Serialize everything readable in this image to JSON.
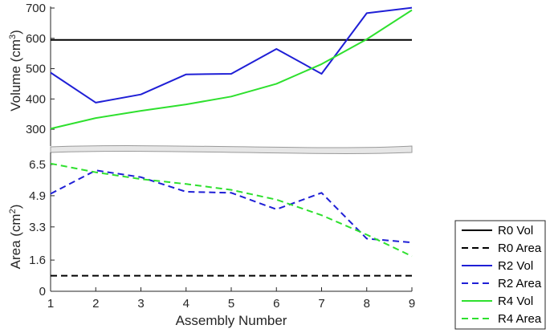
{
  "chart_data": {
    "type": "line",
    "x": [
      1,
      2,
      3,
      4,
      5,
      6,
      7,
      8,
      9
    ],
    "xlabel": "Assembly Number",
    "x_ticks": [
      "1",
      "2",
      "3",
      "4",
      "5",
      "6",
      "7",
      "8",
      "9"
    ],
    "xlim": [
      1,
      9
    ],
    "top_panel": {
      "ylabel": "Volume (cm³)",
      "ylim": [
        250,
        700
      ],
      "y_ticks": [
        "300",
        "400",
        "500",
        "600",
        "700"
      ],
      "series": [
        {
          "name": "R0 Vol",
          "color": "#000000",
          "style": "solid",
          "values": [
            595,
            595,
            595,
            595,
            595,
            595,
            595,
            595,
            595
          ]
        },
        {
          "name": "R2 Vol",
          "color": "#1f1fd6",
          "style": "solid",
          "values": [
            487,
            388,
            415,
            481,
            483,
            565,
            483,
            683,
            701
          ]
        },
        {
          "name": "R4 Vol",
          "color": "#2ee02e",
          "style": "solid",
          "values": [
            302,
            337,
            361,
            382,
            408,
            450,
            515,
            597,
            693
          ]
        }
      ]
    },
    "bottom_panel": {
      "ylabel": "Area (cm²)",
      "ylim": [
        0,
        7.2
      ],
      "y_ticks": [
        "0",
        "1.6",
        "3.3",
        "4.9",
        "6.5"
      ],
      "series": [
        {
          "name": "R0 Area",
          "color": "#000000",
          "style": "dashed",
          "values": [
            0.8,
            0.8,
            0.8,
            0.8,
            0.8,
            0.8,
            0.8,
            0.8,
            0.8
          ]
        },
        {
          "name": "R2 Area",
          "color": "#1f1fd6",
          "style": "dashed",
          "values": [
            5.0,
            6.2,
            5.85,
            5.1,
            5.05,
            4.2,
            5.05,
            2.7,
            2.5
          ]
        },
        {
          "name": "R4 Area",
          "color": "#2ee02e",
          "style": "dashed",
          "values": [
            6.55,
            6.1,
            5.75,
            5.5,
            5.2,
            4.7,
            3.9,
            2.9,
            1.8
          ]
        }
      ]
    },
    "legend": {
      "placement": "bottom-right",
      "entries": [
        {
          "label": "R0 Vol",
          "color": "#000000",
          "style": "solid"
        },
        {
          "label": "R0 Area",
          "color": "#000000",
          "style": "dashed"
        },
        {
          "label": "R2 Vol",
          "color": "#1f1fd6",
          "style": "solid"
        },
        {
          "label": "R2 Area",
          "color": "#1f1fd6",
          "style": "dashed"
        },
        {
          "label": "R4 Vol",
          "color": "#2ee02e",
          "style": "solid"
        },
        {
          "label": "R4 Area",
          "color": "#2ee02e",
          "style": "dashed"
        }
      ]
    },
    "grid": false
  }
}
